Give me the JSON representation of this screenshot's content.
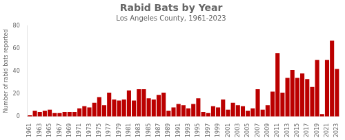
{
  "chart_data": {
    "type": "bar",
    "title": "Rabid Bats by Year",
    "subtitle": "Los Angeles County, 1961-2023",
    "ylabel": "Number of rabid bats reported",
    "categories": [
      "1961",
      null,
      "1963",
      null,
      "1965",
      null,
      "1967",
      null,
      "1969",
      null,
      "1971",
      null,
      "1973",
      null,
      "1975",
      null,
      "1977",
      null,
      "1979",
      null,
      "1981",
      null,
      "1983",
      null,
      "1985",
      null,
      "1987",
      null,
      "1989",
      null,
      "1991",
      null,
      "1993",
      null,
      "1995",
      null,
      "1997",
      null,
      "1999",
      null,
      "2001",
      null,
      "2003",
      null,
      "2005",
      null,
      "2007",
      null,
      "2009",
      null,
      "2011",
      null,
      "2013",
      null,
      "2015",
      null,
      "2017",
      null,
      "2019",
      null,
      "2021",
      null,
      "2023"
    ],
    "values": [
      1,
      5,
      4,
      5,
      6,
      3,
      3,
      4,
      4,
      4,
      7,
      9,
      8,
      12,
      17,
      10,
      21,
      15,
      14,
      15,
      23,
      14,
      24,
      24,
      16,
      15,
      19,
      21,
      5,
      8,
      11,
      10,
      7,
      11,
      16,
      4,
      3,
      9,
      8,
      15,
      6,
      12,
      10,
      9,
      5,
      7,
      24,
      6,
      10,
      22,
      56,
      21,
      34,
      41,
      34,
      38,
      33,
      26,
      50,
      2,
      50,
      67,
      42
    ],
    "color": "#bb0000",
    "ylim": [
      0,
      80
    ],
    "yticks": [
      0,
      20,
      40,
      60,
      80
    ],
    "grid": false
  }
}
